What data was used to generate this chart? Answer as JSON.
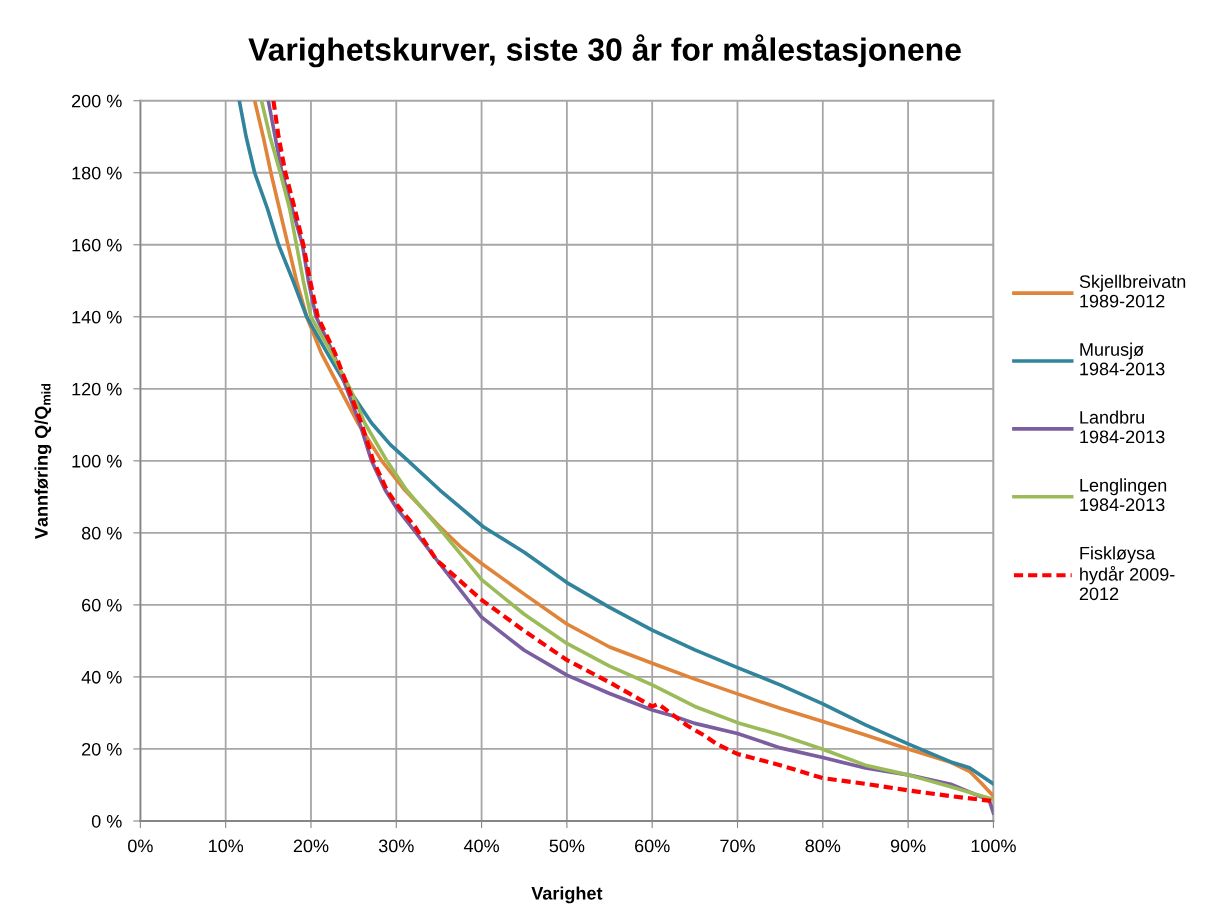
{
  "chart_data": {
    "type": "line",
    "title": "Varighetskurver, siste 30 år for målestasjonene",
    "xlabel": "Varighet",
    "ylabel": "Vannføring Q/Q$_{mid}$",
    "xlim": [
      0,
      100
    ],
    "ylim": [
      0,
      200
    ],
    "xticks": [
      {
        "value": 0,
        "label": "0%"
      },
      {
        "value": 10,
        "label": "10%"
      },
      {
        "value": 20,
        "label": "20%"
      },
      {
        "value": 30,
        "label": "30%"
      },
      {
        "value": 40,
        "label": "40%"
      },
      {
        "value": 50,
        "label": "50%"
      },
      {
        "value": 60,
        "label": "60%"
      },
      {
        "value": 70,
        "label": "70%"
      },
      {
        "value": 80,
        "label": "80%"
      },
      {
        "value": 90,
        "label": "90%"
      },
      {
        "value": 100,
        "label": "100%"
      }
    ],
    "yticks": [
      {
        "value": 0,
        "label": "0 %"
      },
      {
        "value": 20,
        "label": "20 %"
      },
      {
        "value": 40,
        "label": "40 %"
      },
      {
        "value": 60,
        "label": "60 %"
      },
      {
        "value": 80,
        "label": "80 %"
      },
      {
        "value": 100,
        "label": "100 %"
      },
      {
        "value": 120,
        "label": "120 %"
      },
      {
        "value": 140,
        "label": "140 %"
      },
      {
        "value": 160,
        "label": "160 %"
      },
      {
        "value": 180,
        "label": "180 %"
      },
      {
        "value": 200,
        "label": "200 %"
      }
    ],
    "grid": true,
    "legend": "right",
    "series": [
      {
        "name": "Skjellbreivatn\n1989-2012",
        "color": "#e0843a",
        "line_style": "solid",
        "x": [
          13.4,
          14.4,
          15.3,
          16.3,
          17.3,
          18.3,
          19.5,
          21.2,
          23.4,
          25.5,
          28.3,
          31,
          35.1,
          37.5,
          40,
          45,
          50,
          55,
          60,
          65,
          70,
          75,
          80,
          85,
          90,
          95,
          97.2,
          98.6,
          100
        ],
        "values": [
          200,
          190,
          180,
          170,
          160,
          150,
          140,
          130,
          120,
          110.5,
          100,
          91.9,
          81.7,
          76.2,
          71.5,
          63,
          54.7,
          48.3,
          43.8,
          39.4,
          35.3,
          31.3,
          27.6,
          23.9,
          20,
          16.3,
          13.8,
          10.5,
          6.9
        ]
      },
      {
        "name": "Murusjø\n1984-2013",
        "color": "#31849b",
        "line_style": "solid",
        "x": [
          11.6,
          12.4,
          13.4,
          14.9,
          16.2,
          17.9,
          19.5,
          21.9,
          24.4,
          27.1,
          29.3,
          31.4,
          35.1,
          40.2,
          45,
          50,
          55,
          60,
          65,
          70,
          75,
          80,
          85,
          90,
          95,
          97.2,
          100
        ],
        "values": [
          200,
          190,
          180,
          170,
          160,
          150,
          140,
          130,
          120,
          110.5,
          104.5,
          100,
          91.9,
          81.7,
          74.6,
          66.2,
          59.3,
          53,
          47.5,
          42.6,
          37.8,
          32.5,
          26.7,
          21.4,
          16.4,
          14.8,
          10.3
        ]
      },
      {
        "name": "Landbru\n1984-2013",
        "color": "#7b5ea0",
        "line_style": "solid",
        "x": [
          15.0,
          15.8,
          16.6,
          17.8,
          19.0,
          19.7,
          20.6,
          22.6,
          24.2,
          25.7,
          27.1,
          28.7,
          30,
          32,
          35,
          40,
          45,
          50,
          55,
          60,
          62.3,
          65,
          70,
          75,
          80,
          85,
          90,
          95,
          99.5,
          100
        ],
        "values": [
          200,
          190,
          180,
          170,
          160,
          150,
          140,
          130,
          120,
          110.5,
          100,
          91.9,
          87,
          81,
          71.7,
          56.6,
          47.4,
          40.5,
          35.4,
          30.8,
          29.3,
          27.1,
          24.3,
          20.3,
          17.6,
          14.7,
          12.8,
          10.2,
          5.8,
          2.2
        ]
      },
      {
        "name": "Lenglingen\n1984-2013",
        "color": "#9bbb59",
        "line_style": "solid",
        "x": [
          14.2,
          15.2,
          16.4,
          17.5,
          18.3,
          19.1,
          20.0,
          22.4,
          24.6,
          26.3,
          28.9,
          31.2,
          34.9,
          37.8,
          40,
          45,
          50,
          55,
          60,
          65,
          70,
          75,
          80,
          85,
          90,
          95,
          100
        ],
        "values": [
          200,
          190,
          180,
          170,
          160,
          150,
          140,
          130,
          120,
          110.5,
          100,
          91.9,
          81.7,
          73.4,
          67,
          57.4,
          49.3,
          43,
          37.8,
          31.8,
          27.3,
          23.9,
          19.9,
          15.5,
          12.8,
          9.5,
          6
        ]
      },
      {
        "name": "Fiskløysa\nhydår 2009-\n2012",
        "color": "#ff0000",
        "line_style": "dashed",
        "x": [
          15.6,
          16.2,
          17.0,
          18.1,
          19.1,
          19.9,
          20.8,
          22.8,
          24.4,
          25.9,
          27.3,
          28.9,
          30,
          32.2,
          34.7,
          40,
          45,
          50,
          55,
          60,
          60.7,
          64.1,
          66.2,
          67.6,
          70,
          75,
          80,
          85,
          90,
          95,
          100
        ],
        "values": [
          200,
          190,
          180,
          170,
          160,
          150,
          140,
          130,
          120,
          110.5,
          100,
          91.9,
          88,
          81.7,
          72.5,
          61.4,
          52.8,
          44.7,
          38.5,
          31.8,
          32.5,
          26.5,
          23.6,
          21.3,
          18.6,
          15.5,
          11.9,
          10.3,
          8.5,
          6.9,
          5.5
        ]
      }
    ]
  }
}
